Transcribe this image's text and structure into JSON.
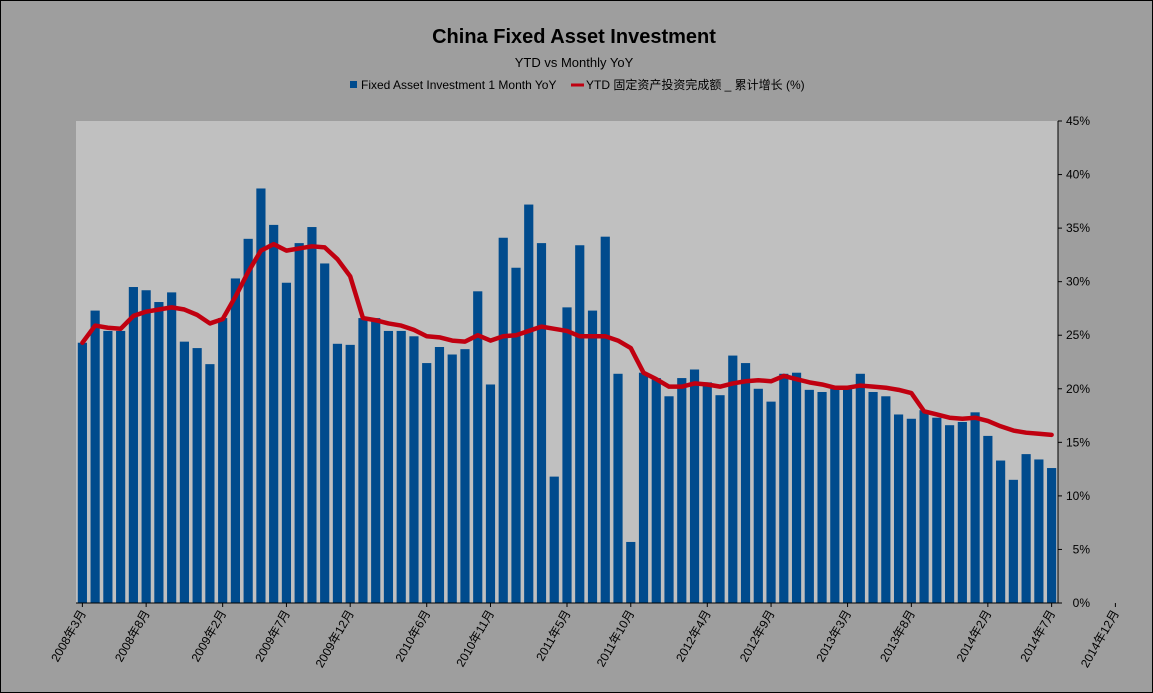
{
  "chart_data": {
    "type": "bar",
    "title": "China Fixed Asset Investment",
    "subtitle": "YTD vs Monthly YoY",
    "ylim": [
      0,
      45
    ],
    "yticks": [
      "0%",
      "5%",
      "10%",
      "15%",
      "20%",
      "25%",
      "30%",
      "35%",
      "40%",
      "45%"
    ],
    "xtick_labels": [
      "2008年3月",
      "2008年8月",
      "2009年2月",
      "2009年7月",
      "2009年12月",
      "2010年6月",
      "2010年11月",
      "2011年5月",
      "2011年10月",
      "2012年4月",
      "2012年9月",
      "2013年3月",
      "2013年8月",
      "2014年2月",
      "2014年7月",
      "2014年12月"
    ],
    "xtick_index": [
      0,
      5,
      11,
      16,
      21,
      27,
      32,
      38,
      43,
      49,
      54,
      60,
      65,
      71,
      76,
      81
    ],
    "legend": {
      "placement": "top-center",
      "bar_label": "Fixed Asset Investment 1 Month YoY",
      "line_label": "YTD  固定资产投资完成额 _ 累计增长 (%)"
    },
    "colors": {
      "bar": "#004b8d",
      "line": "#c00010",
      "plot_bg": "#c0c0c0",
      "frame_bg": "#9e9e9e"
    },
    "series": [
      {
        "type": "bar",
        "values": [
          24.3,
          27.3,
          25.4,
          25.4,
          29.5,
          29.2,
          28.1,
          29.0,
          24.4,
          23.8,
          22.3,
          26.6,
          30.3,
          34.0,
          38.7,
          35.3,
          29.9,
          33.6,
          35.1,
          31.7,
          24.2,
          24.1,
          26.6,
          26.6,
          25.4,
          25.4,
          24.9,
          22.4,
          23.9,
          23.2,
          23.7,
          29.1,
          20.4,
          34.1,
          31.3,
          37.2,
          33.6,
          11.8,
          27.6,
          33.4,
          27.3,
          34.2,
          21.4,
          5.7,
          21.5,
          21.0,
          19.3,
          21.0,
          21.8,
          20.6,
          19.4,
          23.1,
          22.4,
          20.0,
          18.8,
          21.4,
          21.5,
          19.9,
          19.7,
          20.0,
          20.0,
          21.4,
          19.7,
          19.3,
          17.6,
          17.2,
          18.0,
          17.3,
          16.6,
          16.9,
          17.8,
          15.6,
          13.3,
          11.5,
          13.9,
          13.4,
          12.6
        ]
      },
      {
        "type": "line",
        "values": [
          24.3,
          25.9,
          25.7,
          25.6,
          26.8,
          27.2,
          27.4,
          27.6,
          27.4,
          26.9,
          26.1,
          26.5,
          28.6,
          30.9,
          32.9,
          33.5,
          32.9,
          33.1,
          33.3,
          33.2,
          32.1,
          30.5,
          26.6,
          26.4,
          26.1,
          25.9,
          25.5,
          24.9,
          24.8,
          24.5,
          24.4,
          25.0,
          24.5,
          24.9,
          25.0,
          25.4,
          25.8,
          25.6,
          25.4,
          24.9,
          24.9,
          24.9,
          24.5,
          23.8,
          21.5,
          20.9,
          20.2,
          20.2,
          20.5,
          20.4,
          20.2,
          20.5,
          20.7,
          20.8,
          20.7,
          21.2,
          20.9,
          20.6,
          20.4,
          20.1,
          20.1,
          20.3,
          20.2,
          20.1,
          19.9,
          19.6,
          17.9,
          17.6,
          17.3,
          17.2,
          17.3,
          17.0,
          16.5,
          16.1,
          15.9,
          15.8,
          15.7
        ]
      }
    ]
  }
}
